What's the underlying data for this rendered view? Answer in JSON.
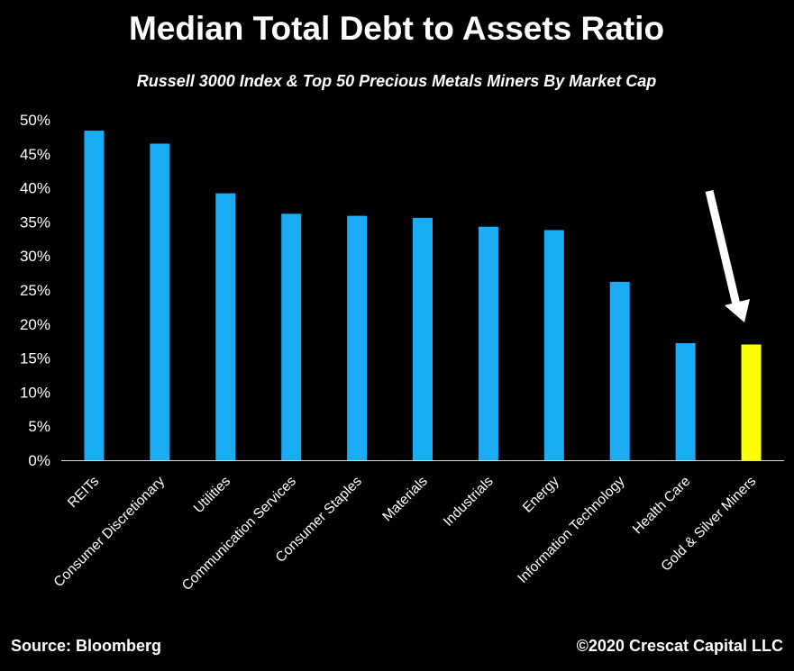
{
  "footer": {
    "source": "Source: Bloomberg",
    "copyright": "©2020 Crescat Capital LLC"
  },
  "colors": {
    "background": "#000000",
    "bar": "#1aadf5",
    "highlight_bar": "#ffff00",
    "text": "#ffffff",
    "axis": "#d9d9d9"
  },
  "chart_data": {
    "type": "bar",
    "title": "Median Total Debt to Assets Ratio",
    "subtitle": "Russell 3000 Index & Top 50 Precious Metals Miners By Market Cap",
    "categories": [
      "REITs",
      "Consumer Discretionary",
      "Utilities",
      "Communication Services",
      "Consumer Staples",
      "Materials",
      "Industrials",
      "Energy",
      "Information Technology",
      "Health Care",
      "Gold & Silver Miners"
    ],
    "values": [
      48.4,
      46.5,
      39.2,
      36.2,
      35.9,
      35.6,
      34.3,
      33.8,
      26.2,
      17.2,
      17.0
    ],
    "unit": "%",
    "ylim": [
      0,
      50
    ],
    "yticks": [
      "0%",
      "5%",
      "10%",
      "15%",
      "20%",
      "25%",
      "30%",
      "35%",
      "40%",
      "45%",
      "50%"
    ],
    "highlight_category": "Gold & Silver Miners",
    "annotation": "arrow-pointing-to-gold-silver-miners",
    "grid": false,
    "legend": "none"
  }
}
